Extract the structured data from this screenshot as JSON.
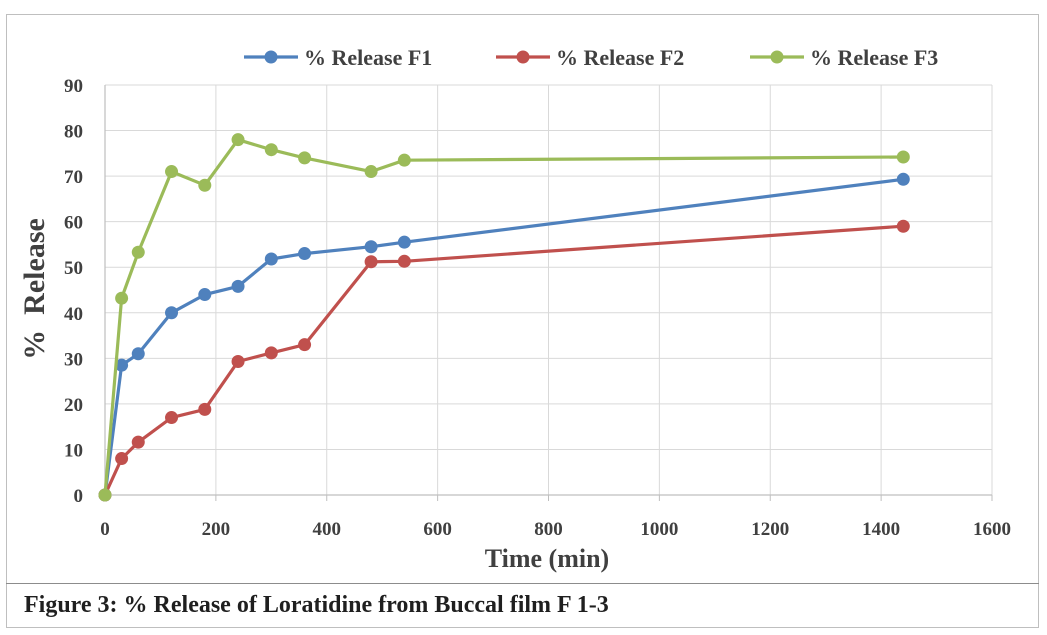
{
  "figure_caption": "Figure 3: % Release of Loratidine from Buccal film F 1-3",
  "chart_data": {
    "type": "line",
    "title": "",
    "xlabel": "Time (min)",
    "ylabel": "%  Release",
    "xlim": [
      0,
      1600
    ],
    "ylim": [
      0,
      90
    ],
    "x_ticks": [
      "0",
      "200",
      "400",
      "600",
      "800",
      "1000",
      "1200",
      "1400",
      "1600"
    ],
    "y_ticks": [
      "0",
      "10",
      "20",
      "30",
      "40",
      "50",
      "60",
      "70",
      "80",
      "90"
    ],
    "grid": true,
    "legend_position": "top",
    "x": [
      0,
      30,
      60,
      120,
      180,
      240,
      300,
      360,
      480,
      540,
      1440
    ],
    "series": [
      {
        "name": "% Release F1",
        "color": "#4f81bd",
        "values": [
          0,
          28.5,
          31,
          40,
          44,
          45.8,
          51.8,
          53,
          54.5,
          55.5,
          69.3
        ]
      },
      {
        "name": "% Release F2",
        "color": "#c0504d",
        "values": [
          0,
          8,
          11.6,
          17,
          18.8,
          29.3,
          31.2,
          33,
          51.2,
          51.3,
          59
        ]
      },
      {
        "name": "% Release F3",
        "color": "#9bbb59",
        "values": [
          0,
          43.2,
          53.3,
          71,
          68,
          78,
          75.8,
          74,
          71,
          73.5,
          74.2
        ]
      }
    ]
  }
}
